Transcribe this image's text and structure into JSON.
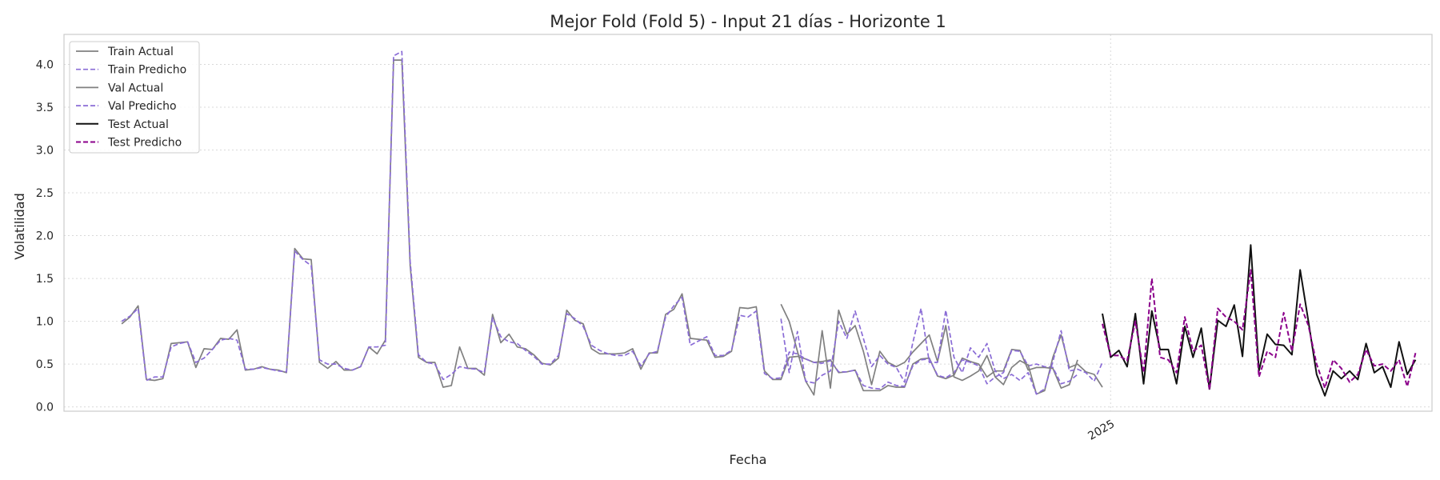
{
  "chart_data": {
    "type": "line",
    "title": "Mejor Fold (Fold 5) - Input 21 días - Horizonte 1",
    "xlabel": "Fecha",
    "ylabel": "Volatilidad",
    "ylim": [
      -0.05,
      4.35
    ],
    "yticks": [
      "0.0",
      "0.5",
      "1.0",
      "1.5",
      "2.0",
      "2.5",
      "3.0",
      "3.5",
      "4.0"
    ],
    "x_axis_unit": "weeks (approx.)",
    "xlim": [
      -5,
      161
    ],
    "xticks": [
      {
        "x": 122,
        "label": "2025"
      }
    ],
    "grid": true,
    "legend_position": "top-left",
    "colors": {
      "train_actual": "#808080",
      "train_pred": "#8a6cd6",
      "val_actual": "#808080",
      "val_pred": "#8a6cd6",
      "test_actual": "#111111",
      "test_pred": "#8b008b",
      "grid": "#d9d9d9",
      "spine": "#cccccc"
    },
    "series": [
      {
        "name": "Train Actual",
        "key": "train_actual",
        "style": "solid",
        "x0": 2,
        "values": [
          0.97,
          1.05,
          1.18,
          0.32,
          0.31,
          0.33,
          0.74,
          0.75,
          0.76,
          0.46,
          0.68,
          0.67,
          0.8,
          0.79,
          0.9,
          0.43,
          0.44,
          0.47,
          0.44,
          0.43,
          0.4,
          1.85,
          1.73,
          1.72,
          0.52,
          0.45,
          0.53,
          0.43,
          0.43,
          0.47,
          0.7,
          0.62,
          0.78,
          4.05,
          4.05,
          1.65,
          0.58,
          0.52,
          0.52,
          0.23,
          0.25,
          0.7,
          0.45,
          0.45,
          0.37,
          1.08,
          0.75,
          0.85,
          0.7,
          0.68,
          0.61,
          0.51,
          0.49,
          0.57,
          1.13,
          1.01,
          0.97,
          0.68,
          0.62,
          0.62,
          0.62,
          0.63,
          0.68,
          0.44,
          0.63,
          0.63,
          1.08,
          1.14,
          1.32,
          0.8,
          0.79,
          0.78,
          0.58,
          0.59,
          0.65,
          1.16,
          1.15,
          1.17,
          0.42,
          0.32,
          0.32,
          0.58,
          0.59,
          0.56,
          0.52,
          0.53,
          0.55,
          0.4,
          0.41,
          0.43,
          0.19,
          0.19,
          0.19,
          0.25,
          0.23,
          0.23,
          0.5,
          0.56,
          0.57,
          0.36,
          0.33,
          0.37,
          0.57,
          0.53,
          0.5,
          0.35,
          0.42,
          0.42,
          0.67,
          0.66,
          0.43,
          0.46,
          0.46,
          0.45,
          0.22,
          0.26,
          0.55
        ]
      },
      {
        "name": "Train Predicho",
        "key": "train_pred",
        "style": "dashed",
        "x0": 2,
        "values": [
          1.0,
          1.06,
          1.15,
          0.31,
          0.35,
          0.35,
          0.7,
          0.74,
          0.76,
          0.52,
          0.57,
          0.67,
          0.78,
          0.8,
          0.78,
          0.44,
          0.44,
          0.46,
          0.44,
          0.42,
          0.41,
          1.82,
          1.72,
          1.65,
          0.55,
          0.5,
          0.5,
          0.45,
          0.43,
          0.47,
          0.7,
          0.7,
          0.72,
          4.1,
          4.15,
          1.7,
          0.61,
          0.52,
          0.5,
          0.32,
          0.38,
          0.47,
          0.45,
          0.44,
          0.4,
          1.04,
          0.82,
          0.76,
          0.74,
          0.66,
          0.59,
          0.5,
          0.5,
          0.6,
          1.09,
          1.03,
          0.94,
          0.72,
          0.66,
          0.62,
          0.6,
          0.6,
          0.65,
          0.48,
          0.62,
          0.65,
          1.05,
          1.18,
          1.28,
          0.72,
          0.77,
          0.82,
          0.6,
          0.6,
          0.66,
          1.07,
          1.05,
          1.12,
          0.39,
          0.33,
          0.34,
          0.64,
          0.62,
          0.56,
          0.52,
          0.51,
          0.54,
          0.41,
          0.41,
          0.43,
          0.25,
          0.22,
          0.21,
          0.29,
          0.25,
          0.24,
          0.48,
          0.55,
          0.56,
          0.37,
          0.34,
          0.4,
          0.55,
          0.52,
          0.48,
          0.27,
          0.35,
          0.4,
          0.66,
          0.65,
          0.48,
          0.5,
          0.47,
          0.46,
          0.27,
          0.3,
          0.38
        ]
      },
      {
        "name": "Val Actual",
        "key": "val_actual",
        "style": "solid",
        "x0": 82,
        "values": [
          1.2,
          1.0,
          0.65,
          0.3,
          0.14,
          0.89,
          0.22,
          1.13,
          0.85,
          0.95,
          0.65,
          0.26,
          0.65,
          0.52,
          0.47,
          0.52,
          0.64,
          0.74,
          0.84,
          0.53,
          0.95,
          0.35,
          0.31,
          0.36,
          0.42,
          0.6,
          0.35,
          0.26,
          0.46,
          0.54,
          0.49,
          0.15,
          0.19,
          0.58,
          0.84,
          0.46,
          0.5,
          0.41,
          0.38,
          0.23
        ]
      },
      {
        "name": "Val Predicho",
        "key": "val_pred",
        "style": "dashed",
        "x0": 82,
        "values": [
          1.03,
          0.4,
          0.88,
          0.3,
          0.28,
          0.37,
          0.42,
          1.0,
          0.8,
          1.12,
          0.8,
          0.47,
          0.6,
          0.5,
          0.46,
          0.29,
          0.75,
          1.15,
          0.52,
          0.52,
          1.13,
          0.58,
          0.4,
          0.69,
          0.58,
          0.74,
          0.42,
          0.33,
          0.38,
          0.31,
          0.4,
          0.15,
          0.21,
          0.53,
          0.89,
          0.42,
          0.44,
          0.4,
          0.3,
          0.52
        ]
      },
      {
        "name": "Test Actual",
        "key": "test_actual",
        "style": "solid",
        "x0": 121,
        "values": [
          1.09,
          0.58,
          0.66,
          0.47,
          1.09,
          0.27,
          1.12,
          0.67,
          0.67,
          0.27,
          0.94,
          0.58,
          0.92,
          0.21,
          1.01,
          0.94,
          1.19,
          0.59,
          1.89,
          0.42,
          0.85,
          0.73,
          0.72,
          0.61,
          1.6,
          1.0,
          0.38,
          0.13,
          0.42,
          0.33,
          0.42,
          0.32,
          0.74,
          0.4,
          0.47,
          0.23,
          0.76,
          0.38,
          0.55
        ]
      },
      {
        "name": "Test Predicho",
        "key": "test_pred",
        "style": "dashed",
        "x0": 121,
        "values": [
          0.97,
          0.6,
          0.6,
          0.54,
          1.0,
          0.4,
          1.5,
          0.58,
          0.55,
          0.4,
          1.05,
          0.65,
          0.72,
          0.2,
          1.15,
          1.05,
          1.0,
          0.9,
          1.6,
          0.35,
          0.65,
          0.58,
          1.1,
          0.65,
          1.2,
          0.95,
          0.5,
          0.22,
          0.55,
          0.45,
          0.29,
          0.38,
          0.67,
          0.48,
          0.5,
          0.42,
          0.55,
          0.24,
          0.63
        ]
      }
    ]
  }
}
